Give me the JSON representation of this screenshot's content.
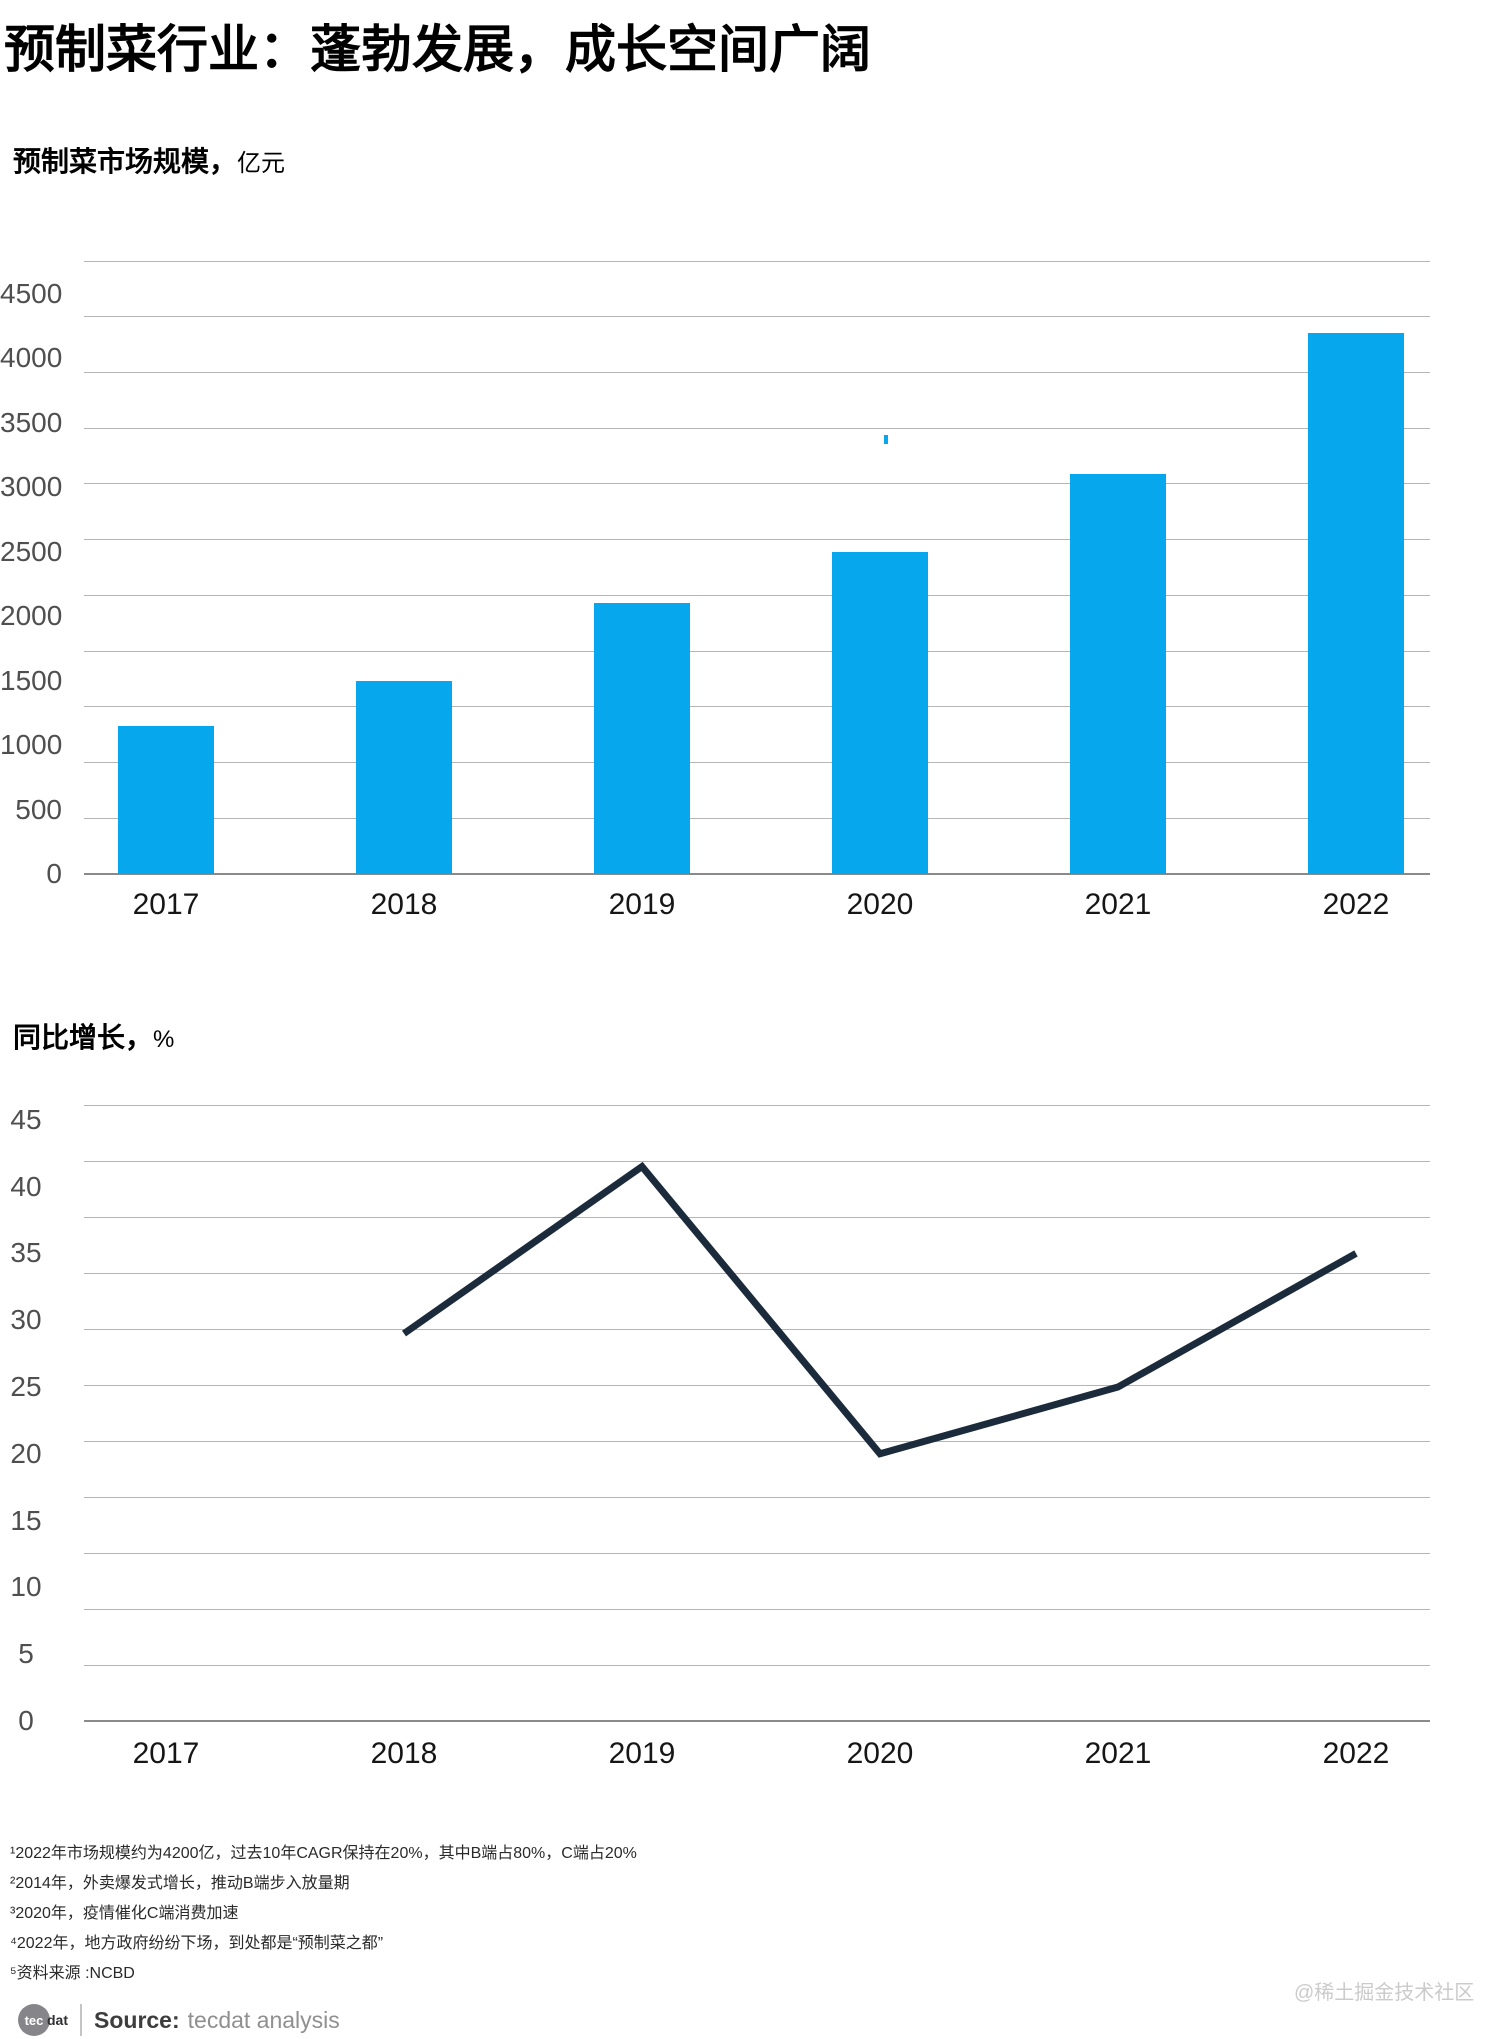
{
  "header": {
    "title": "预制菜行业：蓬勃发展，成长空间广阔"
  },
  "charts": [
    {
      "heading": "预制菜市场规模，",
      "unit": "亿元"
    },
    {
      "heading": "同比增长，",
      "unit": "%"
    }
  ],
  "chart_data": [
    {
      "type": "bar",
      "title": "预制菜市场规模",
      "ylabel": "亿元",
      "categories": [
        "2017",
        "2018",
        "2019",
        "2020",
        "2021",
        "2022"
      ],
      "values": [
        1150,
        1500,
        2100,
        2500,
        3100,
        4200
      ],
      "yticks": [
        0,
        500,
        1000,
        1500,
        2000,
        2500,
        3000,
        3500,
        4000,
        4500
      ],
      "ylim": [
        0,
        4750
      ],
      "grid": true,
      "legend": "none",
      "bar_color": "#06a7ec"
    },
    {
      "type": "line",
      "title": "同比增长",
      "ylabel": "%",
      "categories": [
        "2017",
        "2018",
        "2019",
        "2020",
        "2021",
        "2022"
      ],
      "x": [
        "2018",
        "2019",
        "2020",
        "2021",
        "2022"
      ],
      "values": [
        29,
        41.5,
        20,
        25,
        35
      ],
      "yticks": [
        0,
        5,
        10,
        15,
        20,
        25,
        30,
        35,
        40,
        45
      ],
      "ylim": [
        0,
        47
      ],
      "grid": true,
      "legend": "none",
      "line_color": "#1b2b3b"
    }
  ],
  "footnotes": [
    "¹2022年市场规模约为4200亿，过去10年CAGR保持在20%，其中B端占80%，C端占20%",
    "²2014年，外卖爆发式增长，推动B端步入放量期",
    "³2020年，疫情催化C端消费加速",
    "⁴2022年，地方政府纷纷下场，到处都是“预制菜之都”",
    "⁵资料来源 :NCBD"
  ],
  "watermark": "@稀土掘金技术社区",
  "source": {
    "logo_tec": "tec",
    "logo_dat": "dat",
    "label": "Source:",
    "text": "tecdat analysis"
  },
  "colors": {
    "bar": "#06a7ec",
    "line": "#1b2b3b",
    "grid": "#b5b5b5",
    "axis": "#8a8a8a",
    "tick_label": "#4f4f4f",
    "year_label": "#161616",
    "footnote": "#2a2a2a",
    "watermark": "#cbcbcb"
  }
}
